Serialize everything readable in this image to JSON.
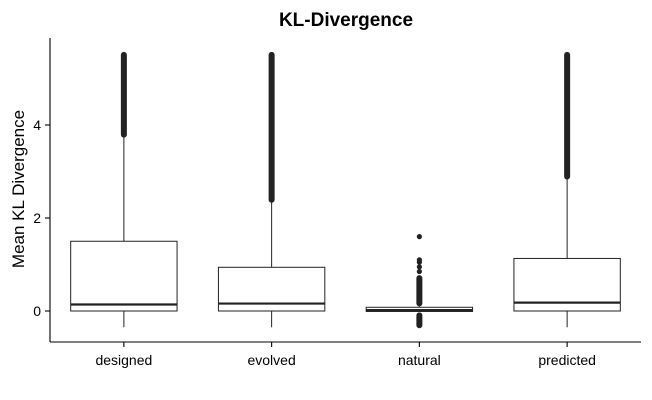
{
  "chart_data": {
    "type": "box",
    "title": "KL-Divergence",
    "xlabel": "",
    "ylabel": "Mean KL Divergence",
    "ylim": [
      -0.65,
      5.85
    ],
    "yticks": [
      0,
      2,
      4
    ],
    "grid": false,
    "categories": [
      "designed",
      "evolved",
      "natural",
      "predicted"
    ],
    "boxes": [
      {
        "category": "designed",
        "whisker_low": -0.35,
        "q1": 0.0,
        "median": 0.14,
        "q3": 1.5,
        "whisker_high": 3.75,
        "outlier_range": [
          3.75,
          5.55
        ],
        "outliers": []
      },
      {
        "category": "evolved",
        "whisker_low": -0.35,
        "q1": 0.0,
        "median": 0.16,
        "q3": 0.94,
        "whisker_high": 2.35,
        "outlier_range": [
          2.35,
          5.55
        ],
        "outliers": []
      },
      {
        "category": "natural",
        "whisker_low": -0.02,
        "q1": -0.01,
        "median": 0.02,
        "q3": 0.08,
        "whisker_high": 0.1,
        "outlier_range": [
          0.12,
          0.75
        ],
        "outlier_range_low": [
          -0.35,
          -0.05
        ],
        "outliers": [
          0.85,
          0.95,
          1.05,
          1.1,
          1.6
        ]
      },
      {
        "category": "predicted",
        "whisker_low": -0.35,
        "q1": 0.0,
        "median": 0.18,
        "q3": 1.13,
        "whisker_high": 2.85,
        "outlier_range": [
          2.85,
          5.55
        ],
        "outliers": []
      }
    ]
  }
}
